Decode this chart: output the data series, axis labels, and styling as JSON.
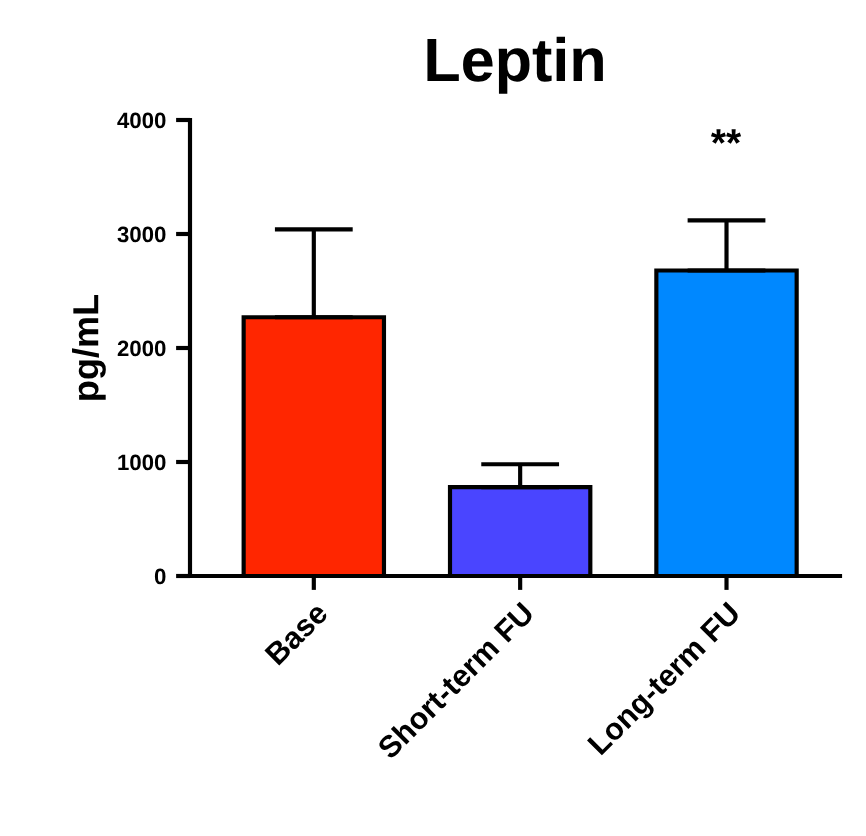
{
  "chart_data": {
    "type": "bar",
    "title": "Leptin",
    "ylabel": "pg/mL",
    "categories": [
      "Base",
      "Short-term FU",
      "Long-term FU"
    ],
    "values": [
      2270,
      780,
      2680
    ],
    "colors": [
      "#ff2600",
      "#4a45ff",
      "#0088ff"
    ],
    "errors": [
      [
        2270,
        3040
      ],
      [
        780,
        980
      ],
      [
        2680,
        3120
      ]
    ],
    "ylim": [
      0,
      4000
    ],
    "yticks": [
      0,
      1000,
      2000,
      3000,
      4000
    ],
    "annotations": [
      "**"
    ]
  }
}
